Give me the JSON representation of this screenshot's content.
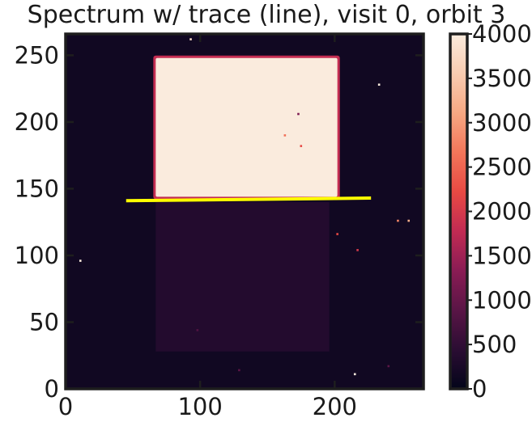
{
  "chart_data": {
    "type": "heatmap",
    "title": "Spectrum w/ trace (line), visit 0, orbit 3",
    "xlim": [
      0,
      266
    ],
    "ylim": [
      0,
      266
    ],
    "x_ticks": [
      0,
      100,
      200
    ],
    "y_ticks": [
      0,
      50,
      100,
      150,
      200,
      250
    ],
    "colorbar": {
      "range": [
        0,
        4000
      ],
      "ticks": [
        0,
        500,
        1000,
        1500,
        2000,
        2500,
        3000,
        3500,
        4000
      ],
      "colormap": [
        "#03051a",
        "#2b0d33",
        "#5a1546",
        "#8a1c54",
        "#c22b53",
        "#e84a43",
        "#f2765a",
        "#f6a883",
        "#f8ccb1",
        "#faebdd"
      ]
    },
    "background_level": 150,
    "regions": [
      {
        "label": "spectrum",
        "x": [
          67,
          202
        ],
        "y": [
          144,
          248
        ],
        "value": 4000
      },
      {
        "label": "faint-rectangle",
        "x": [
          67,
          196
        ],
        "y": [
          28,
          140
        ],
        "value": 350
      }
    ],
    "trace_line": {
      "color": "#ffff00",
      "x": [
        45,
        227
      ],
      "y": [
        141,
        143
      ]
    },
    "hot_pixels": [
      {
        "x": 233,
        "y": 228,
        "value": 4000
      },
      {
        "x": 11,
        "y": 96,
        "value": 4000
      },
      {
        "x": 255,
        "y": 126,
        "value": 3200
      },
      {
        "x": 247,
        "y": 126,
        "value": 2800
      },
      {
        "x": 202,
        "y": 116,
        "value": 2200
      },
      {
        "x": 217,
        "y": 104,
        "value": 2000
      },
      {
        "x": 175,
        "y": 182,
        "value": 2200
      },
      {
        "x": 163,
        "y": 190,
        "value": 2600
      },
      {
        "x": 215,
        "y": 11,
        "value": 4000
      },
      {
        "x": 93,
        "y": 262,
        "value": 3800
      },
      {
        "x": 173,
        "y": 206,
        "value": 1200
      },
      {
        "x": 129,
        "y": 14,
        "value": 900
      },
      {
        "x": 240,
        "y": 17,
        "value": 900
      },
      {
        "x": 98,
        "y": 44,
        "value": 800
      }
    ]
  }
}
